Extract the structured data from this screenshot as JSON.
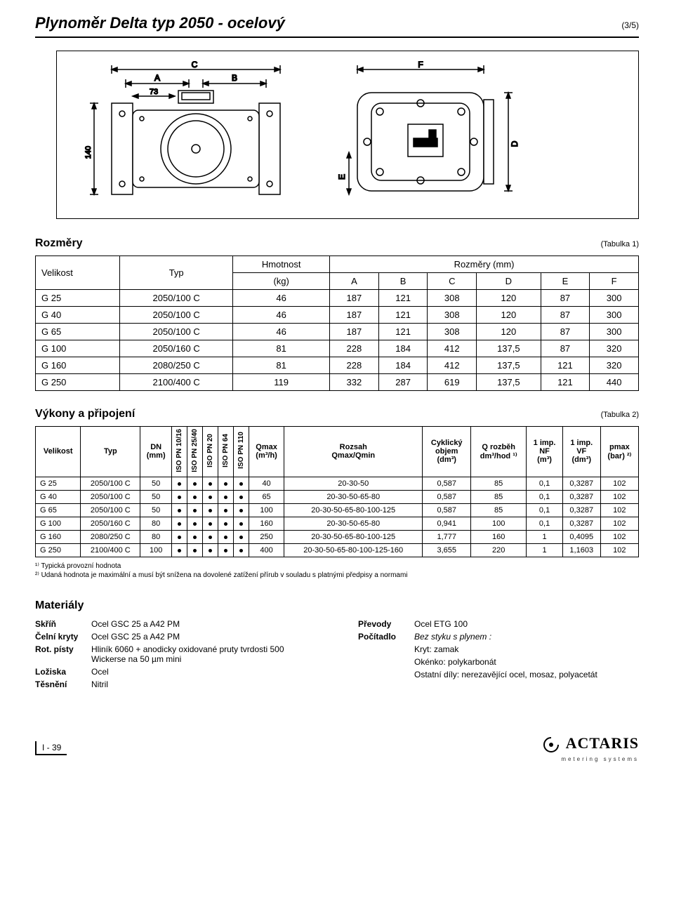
{
  "header": {
    "title": "Plynoměr Delta typ 2050 - ocelový",
    "page_badge": "(3/5)"
  },
  "diagram": {
    "box_border": "#000000",
    "left": {
      "labels": {
        "C": "C",
        "A": "A",
        "B": "B",
        "t73": "73",
        "t140": "140"
      }
    },
    "right": {
      "labels": {
        "F": "F",
        "E": "E",
        "D": "D"
      }
    },
    "stroke": "#000000",
    "fill": "#ffffff"
  },
  "dimensions": {
    "heading": "Rozměry",
    "table_label": "(Tabulka 1)",
    "columns_top": [
      "Velikost",
      "Typ",
      "Hmotnost",
      "Rozměry (mm)"
    ],
    "columns_sub": [
      "(kg)",
      "A",
      "B",
      "C",
      "D",
      "E",
      "F"
    ],
    "rows": [
      [
        "G 25",
        "2050/100 C",
        "46",
        "187",
        "121",
        "308",
        "120",
        "87",
        "300"
      ],
      [
        "G 40",
        "2050/100 C",
        "46",
        "187",
        "121",
        "308",
        "120",
        "87",
        "300"
      ],
      [
        "G 65",
        "2050/100 C",
        "46",
        "187",
        "121",
        "308",
        "120",
        "87",
        "300"
      ],
      [
        "G 100",
        "2050/160 C",
        "81",
        "228",
        "184",
        "412",
        "137,5",
        "87",
        "320"
      ],
      [
        "G 160",
        "2080/250 C",
        "81",
        "228",
        "184",
        "412",
        "137,5",
        "121",
        "320"
      ],
      [
        "G 250",
        "2100/400 C",
        "119",
        "332",
        "287",
        "619",
        "137,5",
        "121",
        "440"
      ]
    ]
  },
  "perf": {
    "heading": "Výkony a připojení",
    "table_label": "(Tabulka 2)",
    "head": {
      "velikost": "Velikost",
      "typ": "Typ",
      "dn": "DN",
      "dn_unit": "(mm)",
      "iso": [
        "ISO PN 10/16",
        "ISO PN 25/40",
        "ISO PN 20",
        "ISO PN 64",
        "ISO PN 110"
      ],
      "qmax": "Qmax",
      "qmax_unit": "(m³/h)",
      "rozsah": "Rozsah",
      "rozsah_sub": "Qmax/Qmin",
      "cyk": "Cyklický",
      "cyk2": "objem",
      "cyk_unit": "(dm³)",
      "qroz": "Q rozběh",
      "qroz_unit": "dm³/hod ¹⁾",
      "imp_nf": "1 imp.",
      "imp_nf2": "NF",
      "imp_nf_unit": "(m³)",
      "imp_vf": "1 imp.",
      "imp_vf2": "VF",
      "imp_vf_unit": "(dm³)",
      "pmax": "pmax",
      "pmax_unit": "(bar) ²⁾"
    },
    "rows": [
      {
        "v": "G 25",
        "t": "2050/100 C",
        "dn": "50",
        "qmax": "40",
        "roz": "20-30-50",
        "cyk": "0,587",
        "qr": "85",
        "nf": "0,1",
        "vf": "0,3287",
        "p": "102"
      },
      {
        "v": "G 40",
        "t": "2050/100 C",
        "dn": "50",
        "qmax": "65",
        "roz": "20-30-50-65-80",
        "cyk": "0,587",
        "qr": "85",
        "nf": "0,1",
        "vf": "0,3287",
        "p": "102"
      },
      {
        "v": "G 65",
        "t": "2050/100 C",
        "dn": "50",
        "qmax": "100",
        "roz": "20-30-50-65-80-100-125",
        "cyk": "0,587",
        "qr": "85",
        "nf": "0,1",
        "vf": "0,3287",
        "p": "102"
      },
      {
        "v": "G 100",
        "t": "2050/160 C",
        "dn": "80",
        "qmax": "160",
        "roz": "20-30-50-65-80",
        "cyk": "0,941",
        "qr": "100",
        "nf": "0,1",
        "vf": "0,3287",
        "p": "102"
      },
      {
        "v": "G 160",
        "t": "2080/250 C",
        "dn": "80",
        "qmax": "250",
        "roz": "20-30-50-65-80-100-125",
        "cyk": "1,777",
        "qr": "160",
        "nf": "1",
        "vf": "0,4095",
        "p": "102"
      },
      {
        "v": "G 250",
        "t": "2100/400 C",
        "dn": "100",
        "qmax": "400",
        "roz": "20-30-50-65-80-100-125-160",
        "cyk": "3,655",
        "qr": "220",
        "nf": "1",
        "vf": "1,1603",
        "p": "102"
      }
    ],
    "foot1": "¹⁾ Typická provozní hodnota",
    "foot2": "²⁾ Udaná hodnota je maximální a musí být snížena na dovolené zatížení přírub v souladu s platnými předpisy a normami"
  },
  "materials": {
    "heading": "Materiály",
    "left": [
      {
        "label": "Skříň",
        "val": "Ocel GSC 25 a A42 PM"
      },
      {
        "label": "Čelní kryty",
        "val": "Ocel GSC 25 a A42 PM"
      },
      {
        "label": "Rot. písty",
        "val": "Hliník 6060 + anodicky oxidované pruty tvrdosti 500 Wickerse na 50 µm mini"
      },
      {
        "label": "Ložiska",
        "val": "Ocel"
      },
      {
        "label": "Těsnění",
        "val": "Nitril"
      }
    ],
    "right": [
      {
        "label": "Převody",
        "val": "Ocel ETG 100"
      },
      {
        "label": "Počítadlo",
        "val": "Bez styku s plynem :",
        "ital": true
      },
      {
        "label": "",
        "val": "Kryt: zamak"
      },
      {
        "label": "",
        "val": "Okénko: polykarbonát"
      },
      {
        "label": "",
        "val": "Ostatní díly: nerezavějící ocel, mosaz, polyacetát"
      }
    ]
  },
  "footer": {
    "page": "I - 39",
    "logo": "ACTARIS",
    "logo_sub": "metering systems"
  }
}
